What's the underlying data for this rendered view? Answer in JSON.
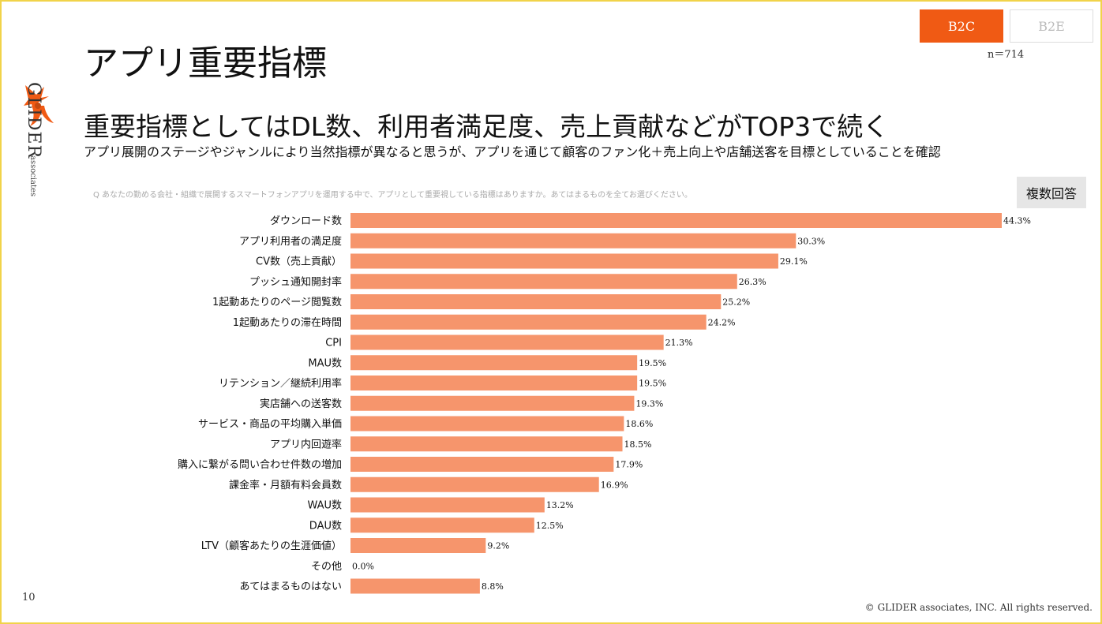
{
  "page": {
    "title": "アプリ重要指標",
    "brand": "GLIDER",
    "brand_sub": "associates",
    "tabs": [
      {
        "label": "B2C",
        "active": true
      },
      {
        "label": "B2E",
        "active": false
      }
    ],
    "sample_size": "n＝714",
    "headline": "重要指標としてはDL数、利用者満足度、売上貢献などがTOP3で続く",
    "subline": "アプリ展開のステージやジャンルにより当然指標が異なると思うが、アプリを通じて顧客のファン化＋売上向上や店舗送客を目標としていることを確認",
    "question": "Q あなたの勤める会社・組織で展開するスマートフォンアプリを運用する中で、アプリとして重要視している指標はありますか。あてはまるものを全てお選びください。",
    "multi_answer": "複数回答",
    "page_number": "10",
    "copyright": "© GLIDER associates, INC. All rights reserved.",
    "accent_color": "#f05a14",
    "bar_color": "#f6956c"
  },
  "chart_data": {
    "type": "bar",
    "orientation": "horizontal",
    "categories": [
      "ダウンロード数",
      "アプリ利用者の満足度",
      "CV数（売上貢献）",
      "プッシュ通知開封率",
      "1起動あたりのページ閲覧数",
      "1起動あたりの滞在時間",
      "CPI",
      "MAU数",
      "リテンション／継続利用率",
      "実店舗への送客数",
      "サービス・商品の平均購入単価",
      "アプリ内回遊率",
      "購入に繋がる問い合わせ件数の増加",
      "課金率・月額有料会員数",
      "WAU数",
      "DAU数",
      "LTV（顧客あたりの生涯価値）",
      "その他",
      "あてはまるものはない"
    ],
    "values": [
      44.3,
      30.3,
      29.1,
      26.3,
      25.2,
      24.2,
      21.3,
      19.5,
      19.5,
      19.3,
      18.6,
      18.5,
      17.9,
      16.9,
      13.2,
      12.5,
      9.2,
      0.0,
      8.8
    ],
    "value_labels": [
      "44.3%",
      "30.3%",
      "29.1%",
      "26.3%",
      "25.2%",
      "24.2%",
      "21.3%",
      "19.5%",
      "19.5%",
      "19.3%",
      "18.6%",
      "18.5%",
      "17.9%",
      "16.9%",
      "13.2%",
      "12.5%",
      "9.2%",
      "0.0%",
      "8.8%"
    ],
    "unit": "%",
    "xlim": [
      0,
      44.3
    ],
    "grid": false,
    "legend": "none"
  }
}
